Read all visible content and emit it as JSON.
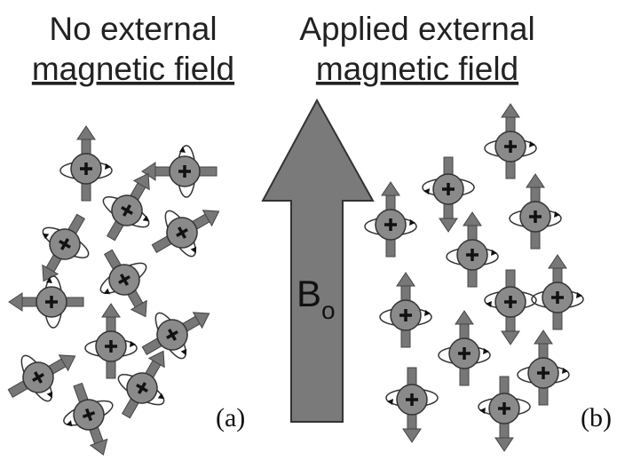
{
  "left_title": {
    "line1": "No external",
    "line2": "magnetic field"
  },
  "right_title": {
    "line1": "Applied external",
    "line2": "magnetic field"
  },
  "arrow_label": {
    "main": "B",
    "subscript": "o"
  },
  "panel_labels": [
    "(a)",
    "(b)"
  ]
}
